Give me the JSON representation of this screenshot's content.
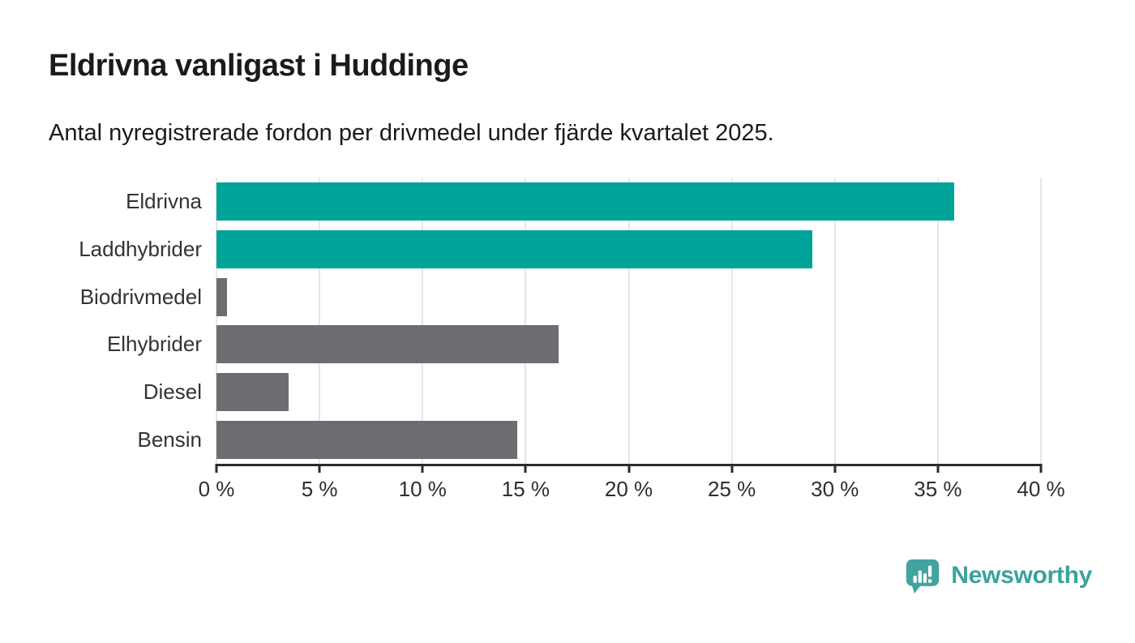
{
  "header": {
    "title": "Eldrivna vanligast i Huddinge",
    "subtitle": "Antal nyregistrerade fordon per drivmedel under fjärde kvartalet 2025."
  },
  "chart_data": {
    "type": "bar",
    "orientation": "horizontal",
    "title": "Eldrivna vanligast i Huddinge",
    "subtitle": "Antal nyregistrerade fordon per drivmedel under fjärde kvartalet 2025.",
    "categories": [
      "Eldrivna",
      "Laddhybrider",
      "Biodrivmedel",
      "Elhybrider",
      "Diesel",
      "Bensin"
    ],
    "values": [
      35.8,
      28.9,
      0.5,
      16.6,
      3.5,
      14.6
    ],
    "unit": "%",
    "bar_colors": [
      "#00a398",
      "#00a398",
      "#6c6c71",
      "#6c6c71",
      "#6c6c71",
      "#6c6c71"
    ],
    "xlabel": "",
    "ylabel": "",
    "xlim": [
      0,
      40
    ],
    "x_ticks": [
      0,
      5,
      10,
      15,
      20,
      25,
      30,
      35,
      40
    ],
    "x_tick_labels": [
      "0 %",
      "5 %",
      "10 %",
      "15 %",
      "20 %",
      "25 %",
      "30 %",
      "35 %",
      "40 %"
    ],
    "grid": "vertical-only",
    "legend": "none"
  },
  "colors": {
    "accent_teal": "#00a398",
    "bar_gray": "#6c6c71",
    "gridline": "#e6e6e6",
    "axis": "#2b2b2b",
    "title_text": "#1b1b1b",
    "label_text": "#333333",
    "logo_teal": "#3ba29d"
  },
  "footer": {
    "brand": "Newsworthy",
    "logo_icon": "bar-chart-speech-bubble-icon"
  }
}
